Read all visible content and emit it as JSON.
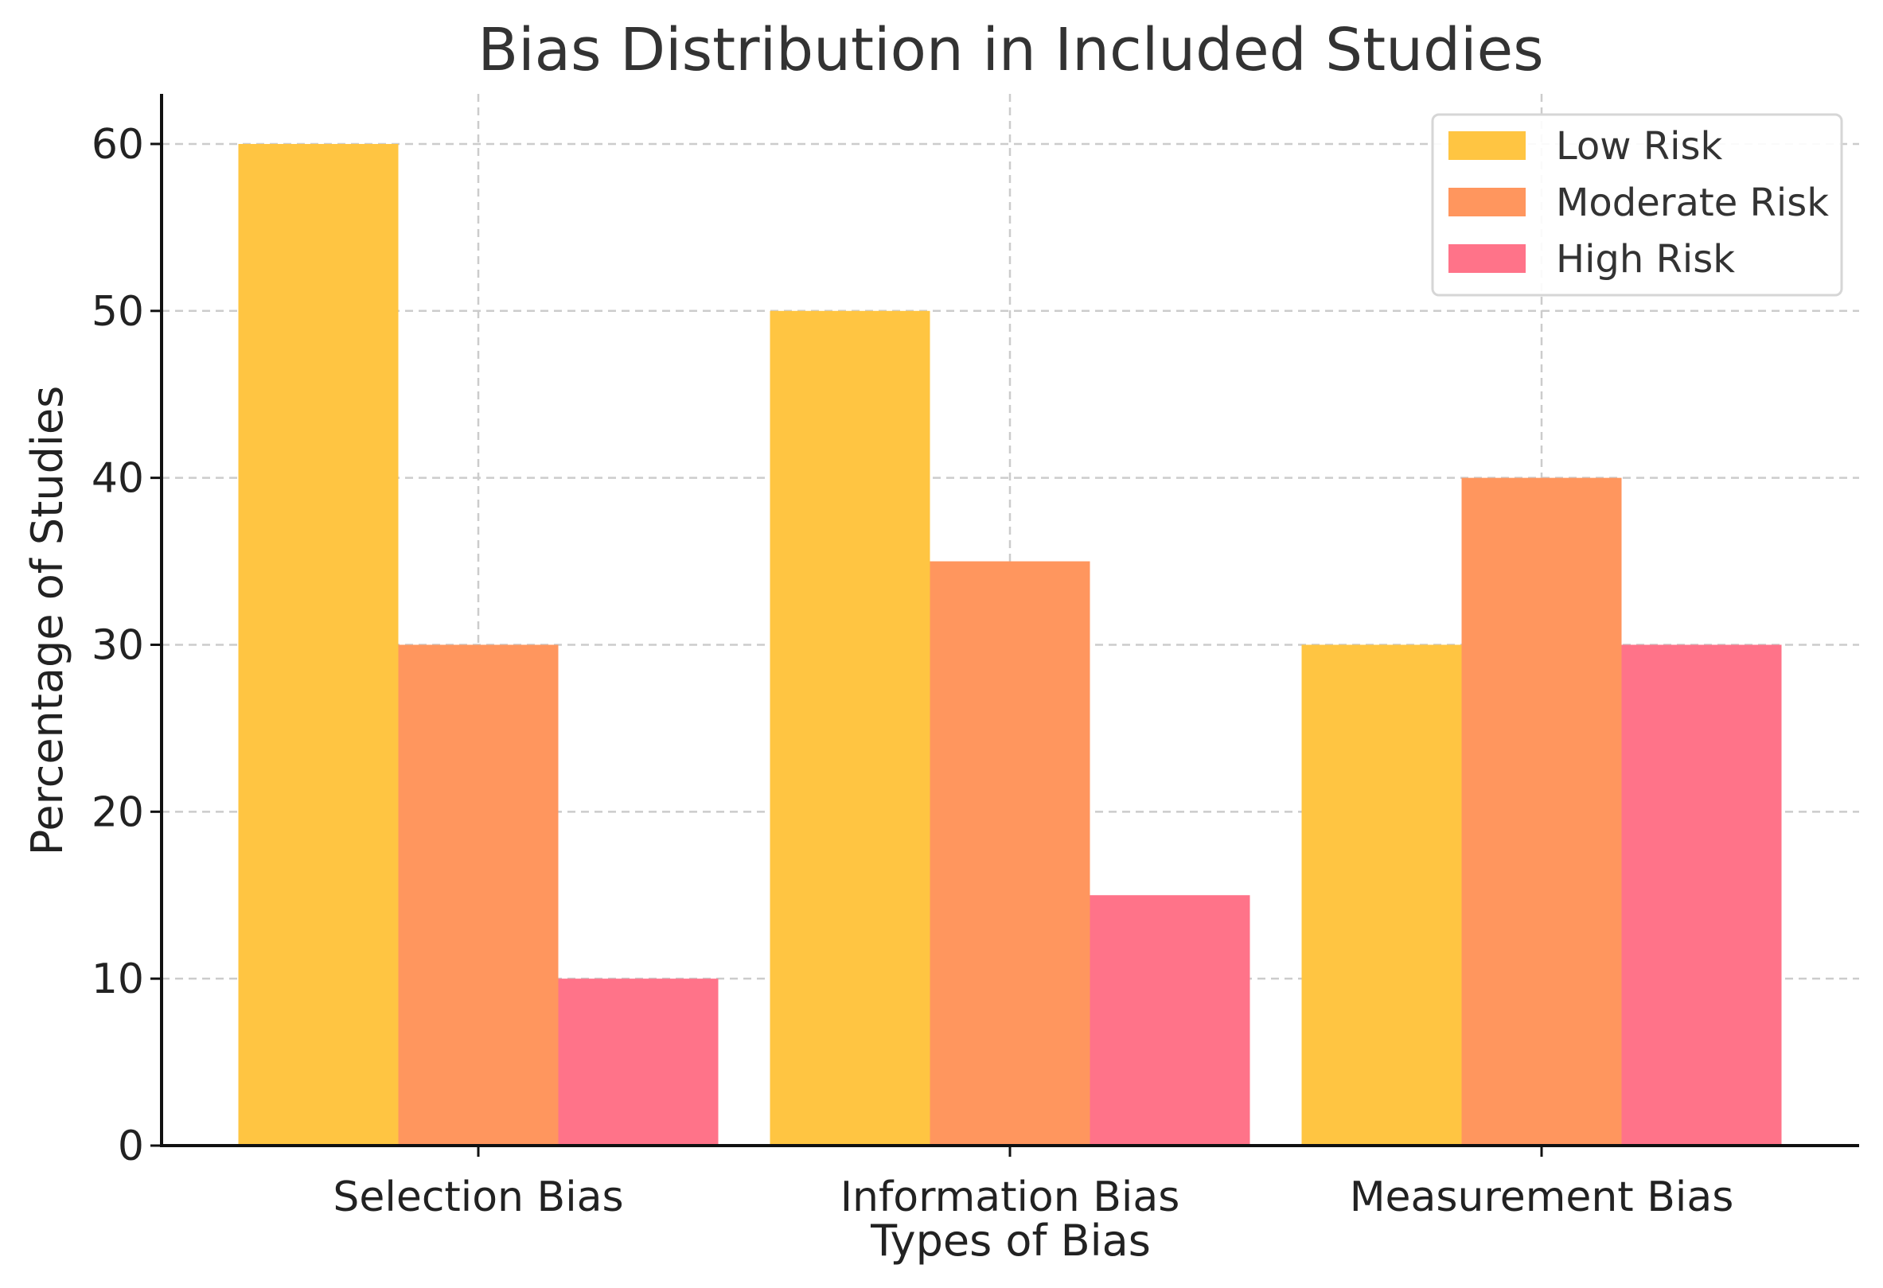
{
  "chart_data": {
    "type": "bar",
    "title": "Bias Distribution in Included Studies",
    "xlabel": "Types of Bias",
    "ylabel": "Percentage of Studies",
    "categories": [
      "Selection Bias",
      "Information Bias",
      "Measurement Bias"
    ],
    "series": [
      {
        "name": "Low Risk",
        "color": "#FFC542",
        "values": [
          60,
          50,
          30
        ]
      },
      {
        "name": "Moderate Risk",
        "color": "#FF965E",
        "values": [
          30,
          35,
          40
        ]
      },
      {
        "name": "High Risk",
        "color": "#FF7389",
        "values": [
          10,
          15,
          30
        ]
      }
    ],
    "ylim": [
      0,
      63
    ],
    "yticks": [
      0,
      10,
      20,
      30,
      40,
      50,
      60
    ],
    "grid": true,
    "legend_position": "top-right"
  }
}
